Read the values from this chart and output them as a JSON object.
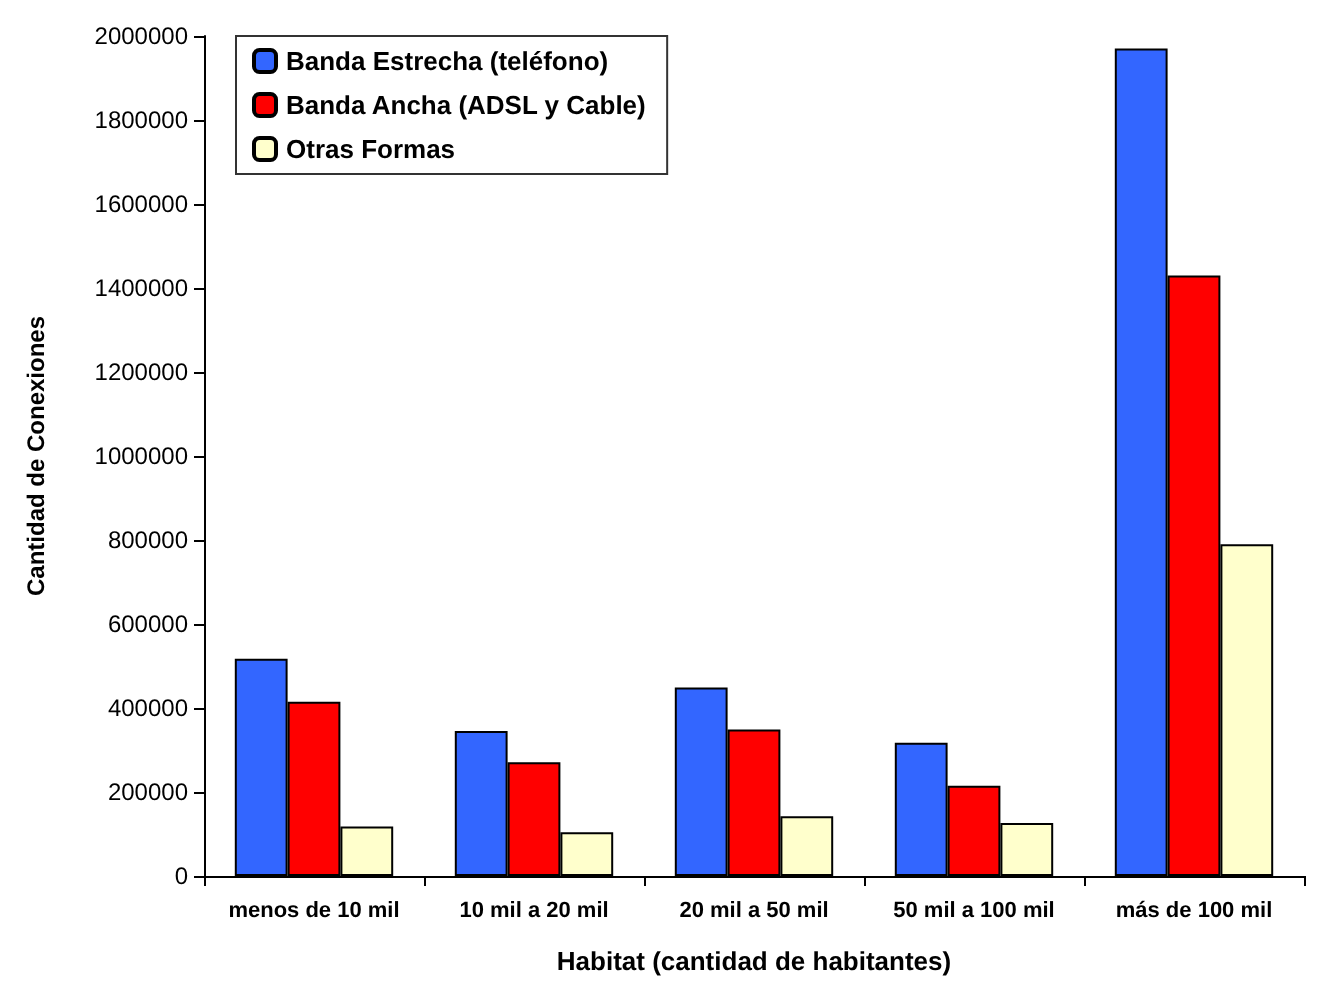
{
  "chart_data": {
    "type": "bar",
    "xlabel": "Habitat (cantidad de habitantes)",
    "ylabel": "Cantidad de Conexiones",
    "categories": [
      "menos de 10 mil",
      "10 mil a 20 mil",
      "20 mil a 50 mil",
      "50 mil a 100 mil",
      "más de 100 mil"
    ],
    "series": [
      {
        "name": "Banda Estrecha (teléfono)",
        "color": "#3366ff",
        "values": [
          517000,
          345000,
          449000,
          317000,
          1970000
        ]
      },
      {
        "name": "Banda Ancha (ADSL y Cable)",
        "color": "#ff0000",
        "values": [
          415000,
          271000,
          349000,
          215000,
          1430000
        ]
      },
      {
        "name": "Otras Formas",
        "color": "#ffffcc",
        "values": [
          118000,
          104000,
          142000,
          126000,
          790000
        ]
      }
    ],
    "ylim": [
      0,
      2000000
    ],
    "yticks": [
      0,
      200000,
      400000,
      600000,
      800000,
      1000000,
      1200000,
      1400000,
      1600000,
      1800000,
      2000000
    ],
    "grid": false,
    "legend": "top left"
  }
}
